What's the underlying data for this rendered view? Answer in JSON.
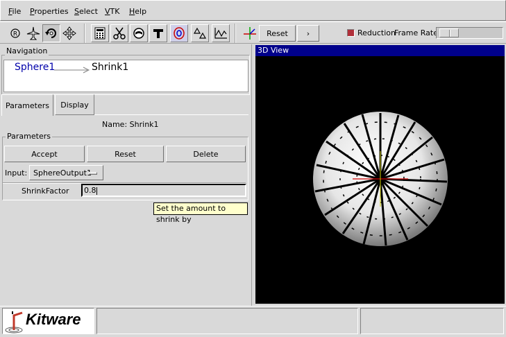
{
  "menu": [
    "File",
    "Properties",
    "Select",
    "VTK",
    "Help"
  ],
  "toolbar": {
    "reset_label": "Reset",
    "next_label": "›",
    "reduction_label": "Reduction",
    "frame_rate_label": "Frame Rate"
  },
  "navigation": {
    "group_label": "Navigation",
    "source": "Sphere1",
    "target": "Shrink1"
  },
  "tabs": [
    "Parameters",
    "Display"
  ],
  "name_label": "Name: Shrink1",
  "parameters": {
    "group_label": "Parameters",
    "accept_label": "Accept",
    "reset_label": "Reset",
    "delete_label": "Delete",
    "input_label": "Input:",
    "input_value": "SphereOutput1",
    "shrink_label": "ShrinkFactor",
    "shrink_value": "0.8"
  },
  "tooltip": "Set the amount to shrink by",
  "view": {
    "title": "3D View"
  },
  "logo_text": "Kitware",
  "colors": {
    "view_title_bg": "#00008b",
    "link_blue": "#0000aa",
    "tooltip_bg": "#ffffcc"
  }
}
